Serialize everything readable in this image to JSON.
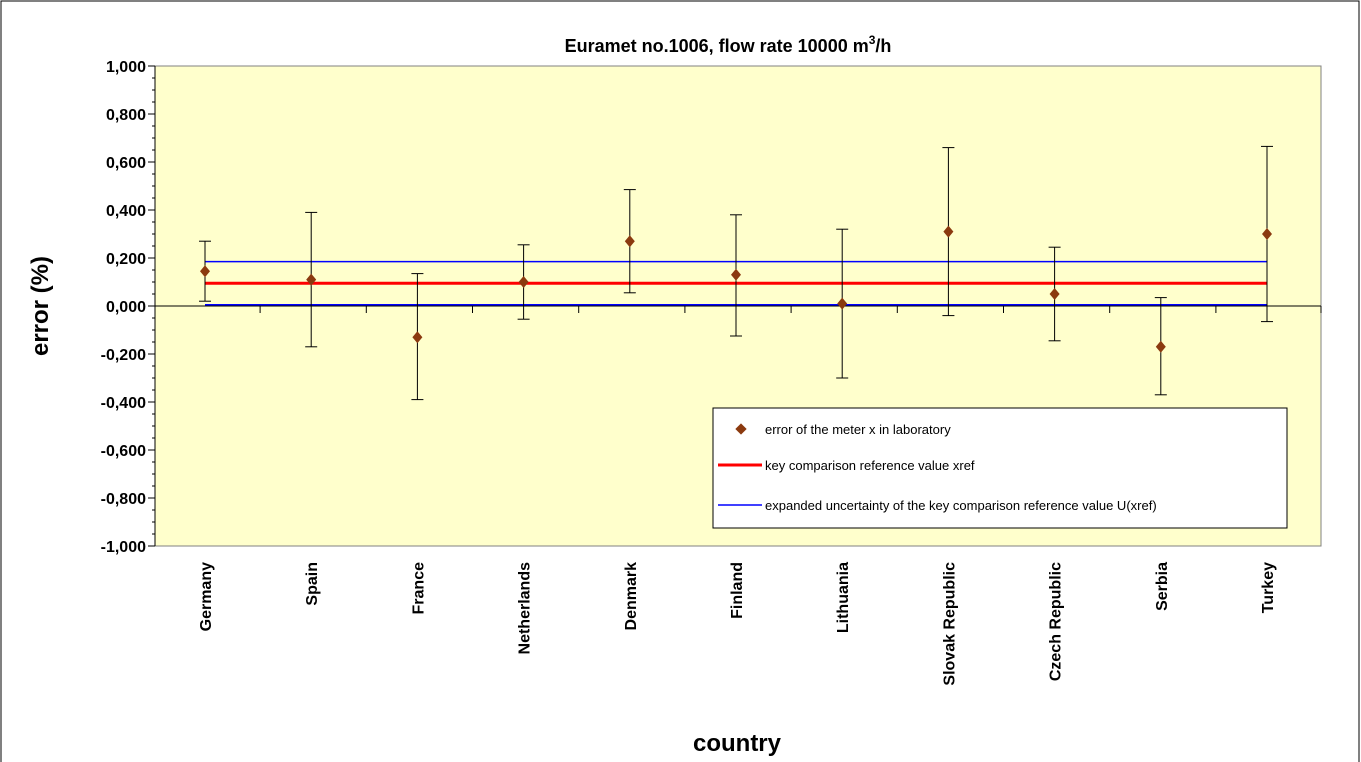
{
  "chart_data": {
    "type": "scatter",
    "title": "Euramet no.1006, flow rate 10000 m",
    "title_superscript": "3",
    "title_suffix": "/h",
    "xlabel": "country",
    "ylabel": "error (%)",
    "ylim": [
      -1.0,
      1.0
    ],
    "y_ticks": [
      1.0,
      0.8,
      0.6,
      0.4,
      0.2,
      0.0,
      -0.2,
      -0.4,
      -0.6,
      -0.8,
      -1.0
    ],
    "y_tick_labels": [
      "1,000",
      "0,800",
      "0,600",
      "0,400",
      "0,200",
      "0,000",
      "-0,200",
      "-0,400",
      "-0,600",
      "-0,800",
      "-1,000"
    ],
    "categories": [
      "Germany",
      "Spain",
      "France",
      "Netherlands",
      "Denmark",
      "Finland",
      "Lithuania",
      "Slovak Republic",
      "Czech Republic",
      "Serbia",
      "Turkey"
    ],
    "series": [
      {
        "name": "error  of the meter x in laboratory",
        "values": [
          0.145,
          0.11,
          -0.13,
          0.1,
          0.27,
          0.13,
          0.01,
          0.31,
          0.05,
          -0.17,
          0.3
        ],
        "error_low": [
          0.02,
          -0.17,
          -0.39,
          -0.055,
          0.055,
          -0.125,
          -0.3,
          -0.04,
          -0.145,
          -0.37,
          -0.065
        ],
        "error_high": [
          0.27,
          0.39,
          0.135,
          0.255,
          0.485,
          0.38,
          0.32,
          0.66,
          0.245,
          0.035,
          0.665
        ],
        "color": "#8B3A0F"
      },
      {
        "name": "key comparison reference value xref",
        "value": 0.095,
        "color": "#ff0000"
      },
      {
        "name": "expanded uncertainty of the key comparison reference value U(xref)",
        "values_lines": [
          0.185,
          0.005
        ],
        "color": "#0000ff"
      }
    ],
    "legend_position": "bottom-right",
    "plot_background": "#ffffcc",
    "grid": false
  }
}
